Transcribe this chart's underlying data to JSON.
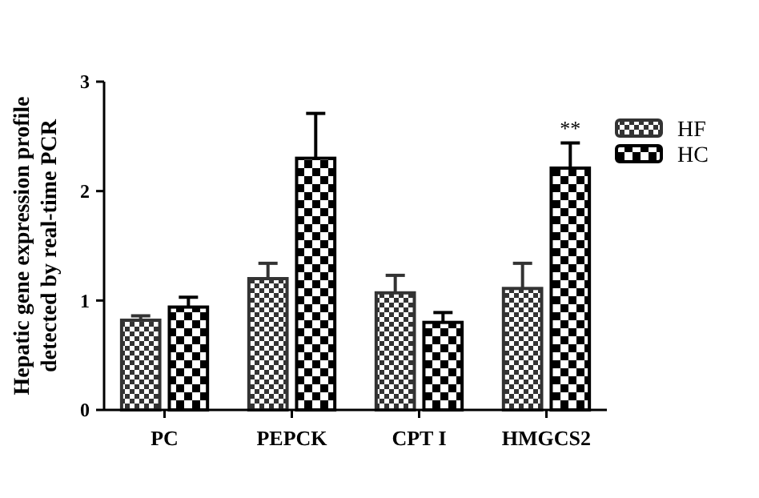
{
  "chart_data": {
    "type": "bar",
    "ylabel": "Hepatic gene expression profile\ndetected by real-time PCR",
    "categories": [
      "PC",
      "PEPCK",
      "CPT I",
      "HMGCS2"
    ],
    "ylim": [
      0,
      3
    ],
    "yticks": [
      0,
      1,
      2,
      3
    ],
    "legend": "right",
    "grid": false,
    "series": [
      {
        "name": "HF",
        "color": "#333333",
        "values": [
          0.82,
          1.2,
          1.07,
          1.11
        ],
        "errors": [
          0.04,
          0.14,
          0.16,
          0.23
        ]
      },
      {
        "name": "HC",
        "color": "#000000",
        "values": [
          0.94,
          2.3,
          0.8,
          2.21
        ],
        "errors": [
          0.09,
          0.41,
          0.09,
          0.23
        ]
      }
    ],
    "annotations": [
      {
        "text": "**",
        "x": "HMGCS2",
        "y": 2.21
      }
    ]
  }
}
